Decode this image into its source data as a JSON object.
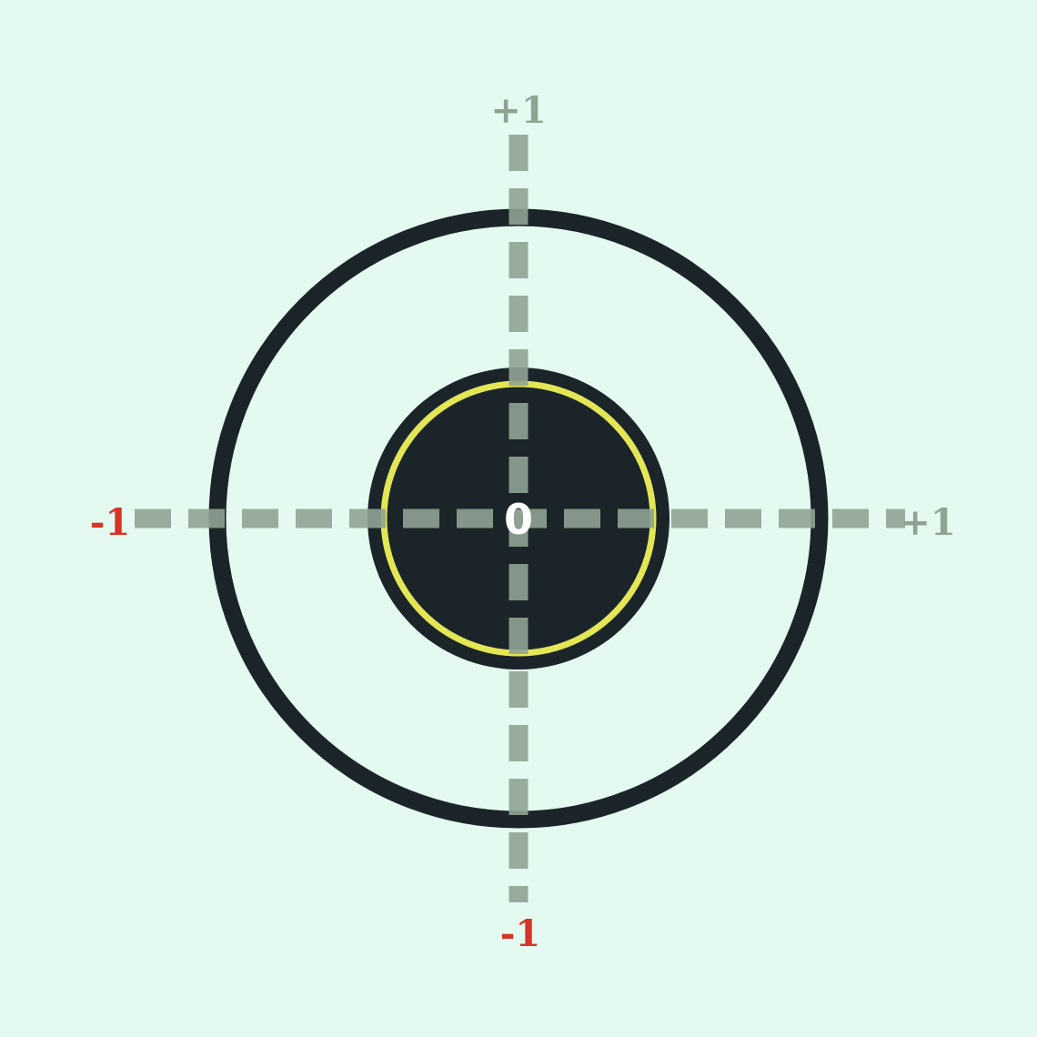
{
  "colors": {
    "background": "#e4faf0",
    "ring": "#1b2529",
    "inner_disk": "#1b2529",
    "inner_ring": "#e3e655",
    "axis": "#8fa393",
    "positive_label": "#8fa393",
    "negative_label": "#d63427",
    "center_label": "#ffffff"
  },
  "axes": {
    "horizontal": {
      "negative_label": "-1",
      "positive_label": "+1"
    },
    "vertical": {
      "negative_label": "-1",
      "positive_label": "+1"
    }
  },
  "center": {
    "label": "0"
  }
}
